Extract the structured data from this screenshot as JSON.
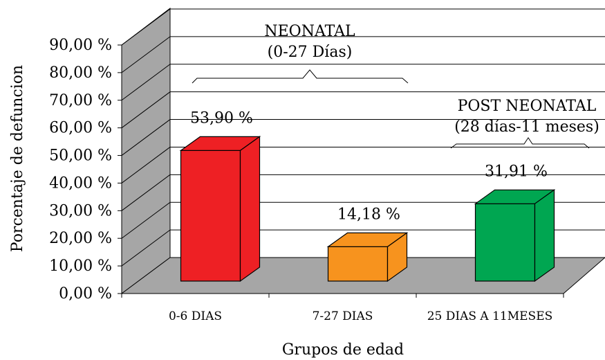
{
  "chart_data": {
    "type": "bar",
    "title": "",
    "xlabel": "Grupos de edad",
    "ylabel": "Porcentaje de defuncion",
    "ylim": [
      0,
      90
    ],
    "yticks": [
      "0,00 %",
      "10,00 %",
      "20,00 %",
      "30,00 %",
      "40,00 %",
      "50,00 %",
      "60,00 %",
      "70,00 %",
      "80,00 %",
      "90,00 %"
    ],
    "categories": [
      "0-6 DIAS",
      "7-27 DIAS",
      "25 DIAS A 11MESES"
    ],
    "values": [
      53.9,
      14.18,
      31.91
    ],
    "value_labels": [
      "53,90 %",
      "14,18 %",
      "31,91 %"
    ],
    "colors": [
      "#ee2024",
      "#f7931e",
      "#00a651"
    ],
    "grid": true,
    "style": "3d",
    "annotations": [
      {
        "line1": "NEONATAL",
        "line2": "(0-27 Días)"
      },
      {
        "line1": "POST NEONATAL",
        "line2": "(28 días-11 meses)"
      }
    ]
  }
}
